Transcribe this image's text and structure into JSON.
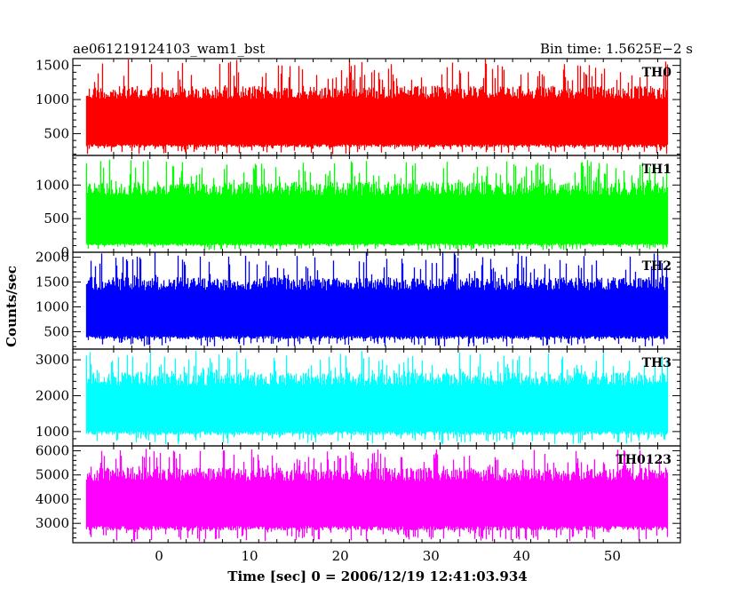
{
  "header": {
    "title": "ae061219124103_wam1_bst",
    "bin_time": "Bin time: 1.5625E−2 s"
  },
  "chart_data": {
    "type": "line",
    "ylabel": "Counts/sec",
    "xlabel": "Time [sec] 0 = 2006/12/19 12:41:03.934",
    "xlim": [
      -9.5,
      57.5
    ],
    "x_ticks": [
      0,
      10,
      20,
      30,
      40,
      50
    ],
    "x_tick_labels": [
      "0",
      "10",
      "20",
      "30",
      "40",
      "50"
    ],
    "data_range": [
      -8,
      56
    ],
    "bin_time_s": 0.015625,
    "panels": [
      {
        "name": "TH0",
        "color": "#ff0000",
        "ylim": [
          180,
          1600
        ],
        "ticks": [
          500,
          1000,
          1500
        ],
        "tick_labels": [
          "500",
          "1000",
          "1500"
        ],
        "typical_low": 300,
        "typical_high": 1200,
        "min": 200,
        "max": 1600
      },
      {
        "name": "TH1",
        "color": "#00ff00",
        "ylim": [
          0,
          1440
        ],
        "ticks": [
          0,
          500,
          1000
        ],
        "tick_labels": [
          "0",
          "500",
          "1000"
        ],
        "typical_low": 100,
        "typical_high": 1050,
        "min": 30,
        "max": 1380
      },
      {
        "name": "TH2",
        "color": "#0000ff",
        "ylim": [
          150,
          2100
        ],
        "ticks": [
          500,
          1000,
          1500,
          2000
        ],
        "tick_labels": [
          "500",
          "1000",
          "1500",
          "2000"
        ],
        "typical_low": 350,
        "typical_high": 1600,
        "min": 200,
        "max": 2100
      },
      {
        "name": "TH3",
        "color": "#00ffff",
        "ylim": [
          600,
          3300
        ],
        "ticks": [
          1000,
          2000,
          3000
        ],
        "tick_labels": [
          "1000",
          "2000",
          "3000"
        ],
        "typical_low": 900,
        "typical_high": 2650,
        "min": 650,
        "max": 3250
      },
      {
        "name": "TH0123",
        "color": "#ff00ff",
        "ylim": [
          2200,
          6200
        ],
        "ticks": [
          3000,
          4000,
          5000,
          6000
        ],
        "tick_labels": [
          "3000",
          "4000",
          "5000",
          "6000"
        ],
        "typical_low": 2700,
        "typical_high": 5300,
        "min": 2250,
        "max": 6100
      }
    ]
  }
}
